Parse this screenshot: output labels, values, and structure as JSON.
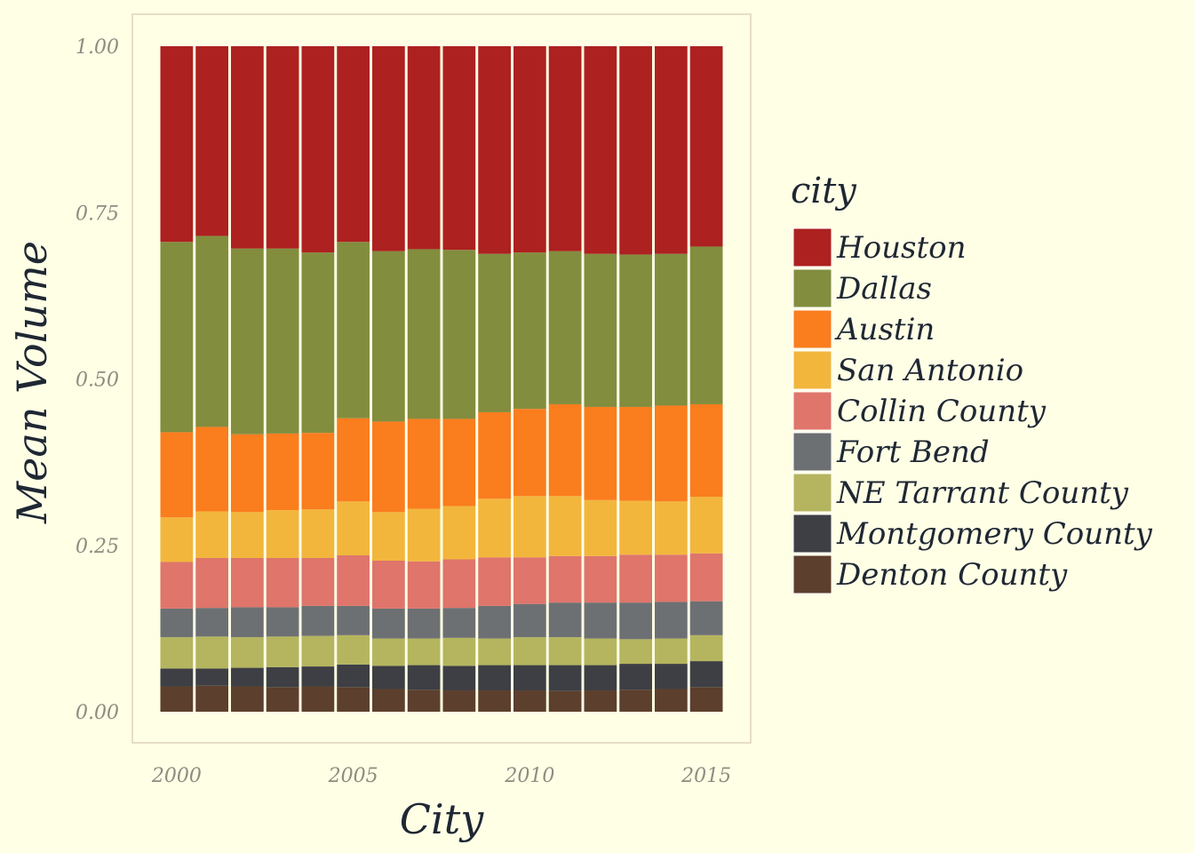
{
  "chart_data": {
    "type": "bar",
    "stacked": true,
    "position": "fill",
    "xlabel": "City",
    "ylabel": "Mean Volume",
    "x": [
      2000,
      2001,
      2002,
      2003,
      2004,
      2005,
      2006,
      2007,
      2008,
      2009,
      2010,
      2011,
      2012,
      2013,
      2014,
      2015
    ],
    "x_ticks": [
      "2000",
      "2005",
      "2010",
      "2015"
    ],
    "y_ticks": [
      "0.00",
      "0.25",
      "0.50",
      "0.75",
      "1.00"
    ],
    "ylim": [
      0,
      1
    ],
    "legend": {
      "title": "city",
      "placement": "right"
    },
    "series": [
      {
        "name": "Denton County",
        "color": "#5C3F2C",
        "values": [
          0.038,
          0.039,
          0.038,
          0.037,
          0.038,
          0.037,
          0.034,
          0.033,
          0.032,
          0.032,
          0.032,
          0.031,
          0.032,
          0.033,
          0.034,
          0.037
        ]
      },
      {
        "name": "Montgomery County",
        "color": "#3D3F44",
        "values": [
          0.027,
          0.026,
          0.028,
          0.03,
          0.03,
          0.034,
          0.035,
          0.037,
          0.037,
          0.038,
          0.038,
          0.039,
          0.038,
          0.039,
          0.038,
          0.039
        ]
      },
      {
        "name": "NE Tarrant County",
        "color": "#B5B55F",
        "values": [
          0.047,
          0.048,
          0.046,
          0.046,
          0.046,
          0.044,
          0.041,
          0.04,
          0.042,
          0.04,
          0.042,
          0.042,
          0.04,
          0.037,
          0.038,
          0.039
        ]
      },
      {
        "name": "Fort Bend",
        "color": "#6D7073",
        "values": [
          0.043,
          0.043,
          0.045,
          0.044,
          0.045,
          0.044,
          0.045,
          0.045,
          0.045,
          0.049,
          0.05,
          0.052,
          0.054,
          0.055,
          0.055,
          0.051
        ]
      },
      {
        "name": "Collin County",
        "color": "#DF756B",
        "values": [
          0.07,
          0.075,
          0.074,
          0.074,
          0.072,
          0.076,
          0.072,
          0.071,
          0.073,
          0.073,
          0.07,
          0.07,
          0.07,
          0.072,
          0.071,
          0.072
        ]
      },
      {
        "name": "San Antonio",
        "color": "#F2B63C",
        "values": [
          0.067,
          0.07,
          0.069,
          0.072,
          0.073,
          0.081,
          0.073,
          0.079,
          0.08,
          0.088,
          0.092,
          0.09,
          0.084,
          0.081,
          0.08,
          0.085
        ]
      },
      {
        "name": "Austin",
        "color": "#FA7D1E",
        "values": [
          0.128,
          0.127,
          0.117,
          0.115,
          0.115,
          0.125,
          0.136,
          0.135,
          0.131,
          0.13,
          0.131,
          0.138,
          0.14,
          0.141,
          0.144,
          0.139
        ]
      },
      {
        "name": "Dallas",
        "color": "#828D3E",
        "values": [
          0.286,
          0.287,
          0.279,
          0.278,
          0.271,
          0.265,
          0.256,
          0.255,
          0.254,
          0.238,
          0.235,
          0.23,
          0.23,
          0.229,
          0.228,
          0.237
        ]
      },
      {
        "name": "Houston",
        "color": "#AD2120",
        "values": [
          0.294,
          0.285,
          0.304,
          0.304,
          0.31,
          0.294,
          0.308,
          0.305,
          0.306,
          0.312,
          0.31,
          0.308,
          0.312,
          0.313,
          0.312,
          0.301
        ]
      }
    ]
  }
}
